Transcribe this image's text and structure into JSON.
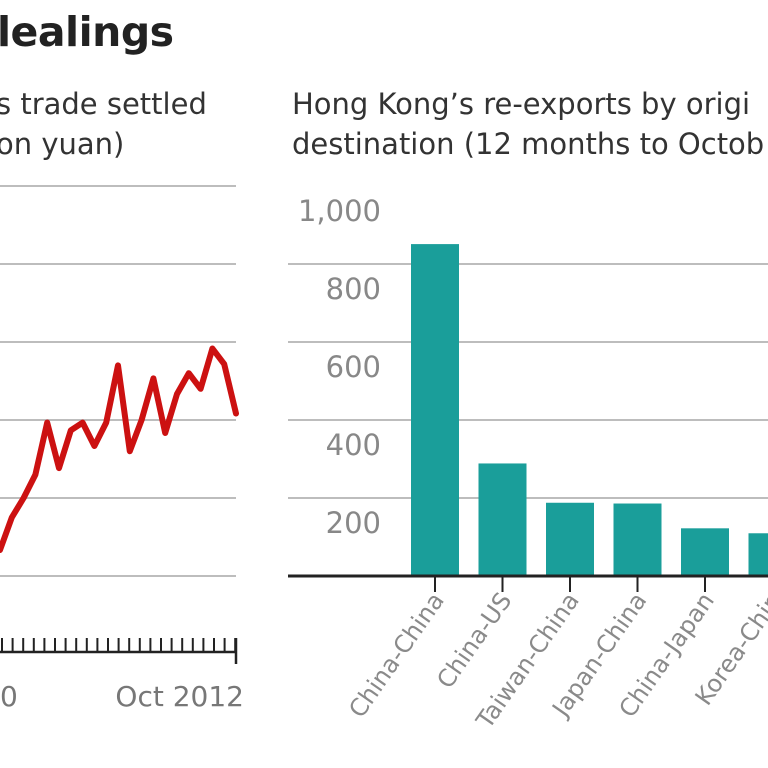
{
  "header": {
    "title": "lealings"
  },
  "chart_data": [
    {
      "type": "line",
      "title_lines": [
        "s trade settled",
        "on yuan)"
      ],
      "x_tick_labels": [
        "0",
        "Oct 2012"
      ],
      "ylim": [
        0,
        300
      ],
      "grid": true,
      "colors": {
        "line": "#cc1111",
        "grid": "#bdbdbd",
        "axis": "#222222"
      },
      "series": [
        {
          "values": [
            20,
            45,
            60,
            78,
            118,
            83,
            112,
            118,
            100,
            118,
            162,
            96,
            120,
            152,
            110,
            140,
            156,
            144,
            175,
            163,
            125
          ]
        }
      ]
    },
    {
      "type": "bar",
      "title_lines": [
        "Hong Kong’s re-exports by origi",
        "destination (12 months to Octob"
      ],
      "categories": [
        "China-China",
        "China-US",
        "Taiwan-China",
        "Japan-China",
        "China-Japan",
        "Korea-Chin"
      ],
      "values": [
        870,
        295,
        192,
        190,
        125,
        112
      ],
      "y_tick_labels": [
        "1,000",
        "800",
        "600",
        "400",
        "200"
      ],
      "ylim": [
        0,
        1000
      ],
      "grid": true,
      "colors": {
        "bar": "#1a9e9a",
        "grid": "#bdbdbd",
        "axis": "#222222"
      }
    }
  ]
}
